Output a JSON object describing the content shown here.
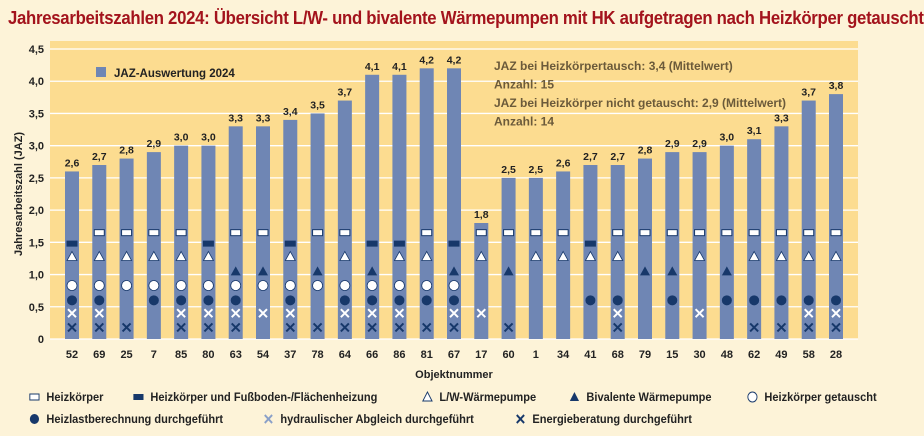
{
  "chart_data": {
    "type": "bar",
    "title": "Jahresarbeitszahlen 2024: Übersicht L/W- und bivalente Wärmepumpen mit HK aufgetragen nach Heizkörper getauscht",
    "xlabel": "Objektnummer",
    "ylabel": "Jahresarbeitszahl (JAZ)",
    "ylim": [
      0,
      4.5
    ],
    "yticks": [
      "0",
      "0,5",
      "1,0",
      "1,5",
      "2,0",
      "2,5",
      "3,0",
      "3,5",
      "4,0",
      "4,5"
    ],
    "grid": true,
    "series": [
      {
        "name": "JAZ-Auswertung 2024",
        "color": "#6f86b4"
      }
    ],
    "categories": [
      "52",
      "69",
      "25",
      "7",
      "85",
      "80",
      "63",
      "54",
      "37",
      "78",
      "64",
      "66",
      "86",
      "81",
      "67",
      "17",
      "60",
      "1",
      "34",
      "41",
      "68",
      "79",
      "15",
      "30",
      "48",
      "62",
      "49",
      "58",
      "28"
    ],
    "values": [
      2.6,
      2.7,
      2.8,
      2.9,
      3.0,
      3.0,
      3.3,
      3.3,
      3.4,
      3.5,
      3.7,
      4.1,
      4.1,
      4.2,
      4.2,
      1.8,
      2.5,
      2.5,
      2.6,
      2.7,
      2.7,
      2.8,
      2.9,
      2.9,
      3.0,
      3.1,
      3.3,
      3.7,
      3.8
    ],
    "value_labels": [
      "2,6",
      "2,7",
      "2,8",
      "2,9",
      "3,0",
      "3,0",
      "3,3",
      "3,3",
      "3,4",
      "3,5",
      "3,7",
      "4,1",
      "4,1",
      "4,2",
      "4,2",
      "1,8",
      "2,5",
      "2,5",
      "2,6",
      "2,7",
      "2,7",
      "2,8",
      "2,9",
      "2,9",
      "3,0",
      "3,1",
      "3,3",
      "3,7",
      "3,8"
    ],
    "markers": [
      [
        "hkfb",
        "lw",
        "open",
        "filled",
        "xl",
        "xd"
      ],
      [
        "hk",
        "lw",
        "open",
        "filled",
        "xl",
        "xd"
      ],
      [
        "hk",
        "lw",
        "open",
        "xd"
      ],
      [
        "hk",
        "lw",
        "open",
        "filled"
      ],
      [
        "hk",
        "lw",
        "open",
        "filled",
        "xl",
        "xd"
      ],
      [
        "hkfb",
        "lw",
        "open",
        "filled",
        "xl",
        "xd"
      ],
      [
        "hk",
        "biv",
        "open",
        "filled",
        "xl",
        "xd"
      ],
      [
        "hk",
        "biv",
        "open",
        "xl"
      ],
      [
        "hkfb",
        "lw",
        "open",
        "filled",
        "xl",
        "xd"
      ],
      [
        "hk",
        "biv",
        "open",
        "xd"
      ],
      [
        "hk",
        "lw",
        "open",
        "filled",
        "xl",
        "xd"
      ],
      [
        "hkfb",
        "biv",
        "open",
        "filled",
        "xl",
        "xd"
      ],
      [
        "hkfb",
        "lw",
        "open",
        "filled",
        "xl",
        "xd"
      ],
      [
        "hk",
        "lw",
        "open",
        "filled",
        "xd"
      ],
      [
        "hkfb",
        "biv",
        "open",
        "filled",
        "xl",
        "xd"
      ],
      [
        "hk",
        "lw",
        "xl"
      ],
      [
        "hk",
        "biv",
        "xd"
      ],
      [
        "hk",
        "lw"
      ],
      [
        "hk",
        "lw"
      ],
      [
        "hkfb",
        "lw",
        "filled"
      ],
      [
        "hk",
        "lw",
        "filled",
        "xl",
        "xd"
      ],
      [
        "hk",
        "biv"
      ],
      [
        "hk",
        "biv",
        "filled"
      ],
      [
        "hk",
        "lw",
        "xl"
      ],
      [
        "hk",
        "biv",
        "filled"
      ],
      [
        "hk",
        "lw",
        "filled",
        "xd"
      ],
      [
        "hk",
        "lw",
        "filled",
        "xd"
      ],
      [
        "hk",
        "lw",
        "filled",
        "xl",
        "xd"
      ],
      [
        "hk",
        "lw",
        "filled",
        "xl",
        "xd"
      ]
    ],
    "annotations": [
      "JAZ bei Heizkörpertausch: 3,4 (Mittelwert)",
      "Anzahl: 15",
      "JAZ bei Heizkörper nicht getauscht: 2,9 (Mittelwert)",
      "Anzahl: 14"
    ],
    "legend_placement": "bottom",
    "legend": [
      {
        "key": "hk",
        "label": "Heizkörper"
      },
      {
        "key": "hkfb",
        "label": "Heizkörper und Fußboden-/Flächenheizung"
      },
      {
        "key": "lw",
        "label": "L/W-Wärmepumpe"
      },
      {
        "key": "biv",
        "label": "Bivalente Wärmepumpe"
      },
      {
        "key": "open",
        "label": "Heizkörper getauscht"
      },
      {
        "key": "filled",
        "label": "Heizlastberechnung durchgeführt"
      },
      {
        "key": "xl",
        "label": "hydraulischer Abgleich durchgeführt"
      },
      {
        "key": "xd",
        "label": "Energieberatung durchgeführt"
      }
    ],
    "colors": {
      "bar": "#6f86b4",
      "plot_bg": "#fcdc90",
      "dark_marker": "#17386a",
      "title": "#a3131c"
    }
  }
}
